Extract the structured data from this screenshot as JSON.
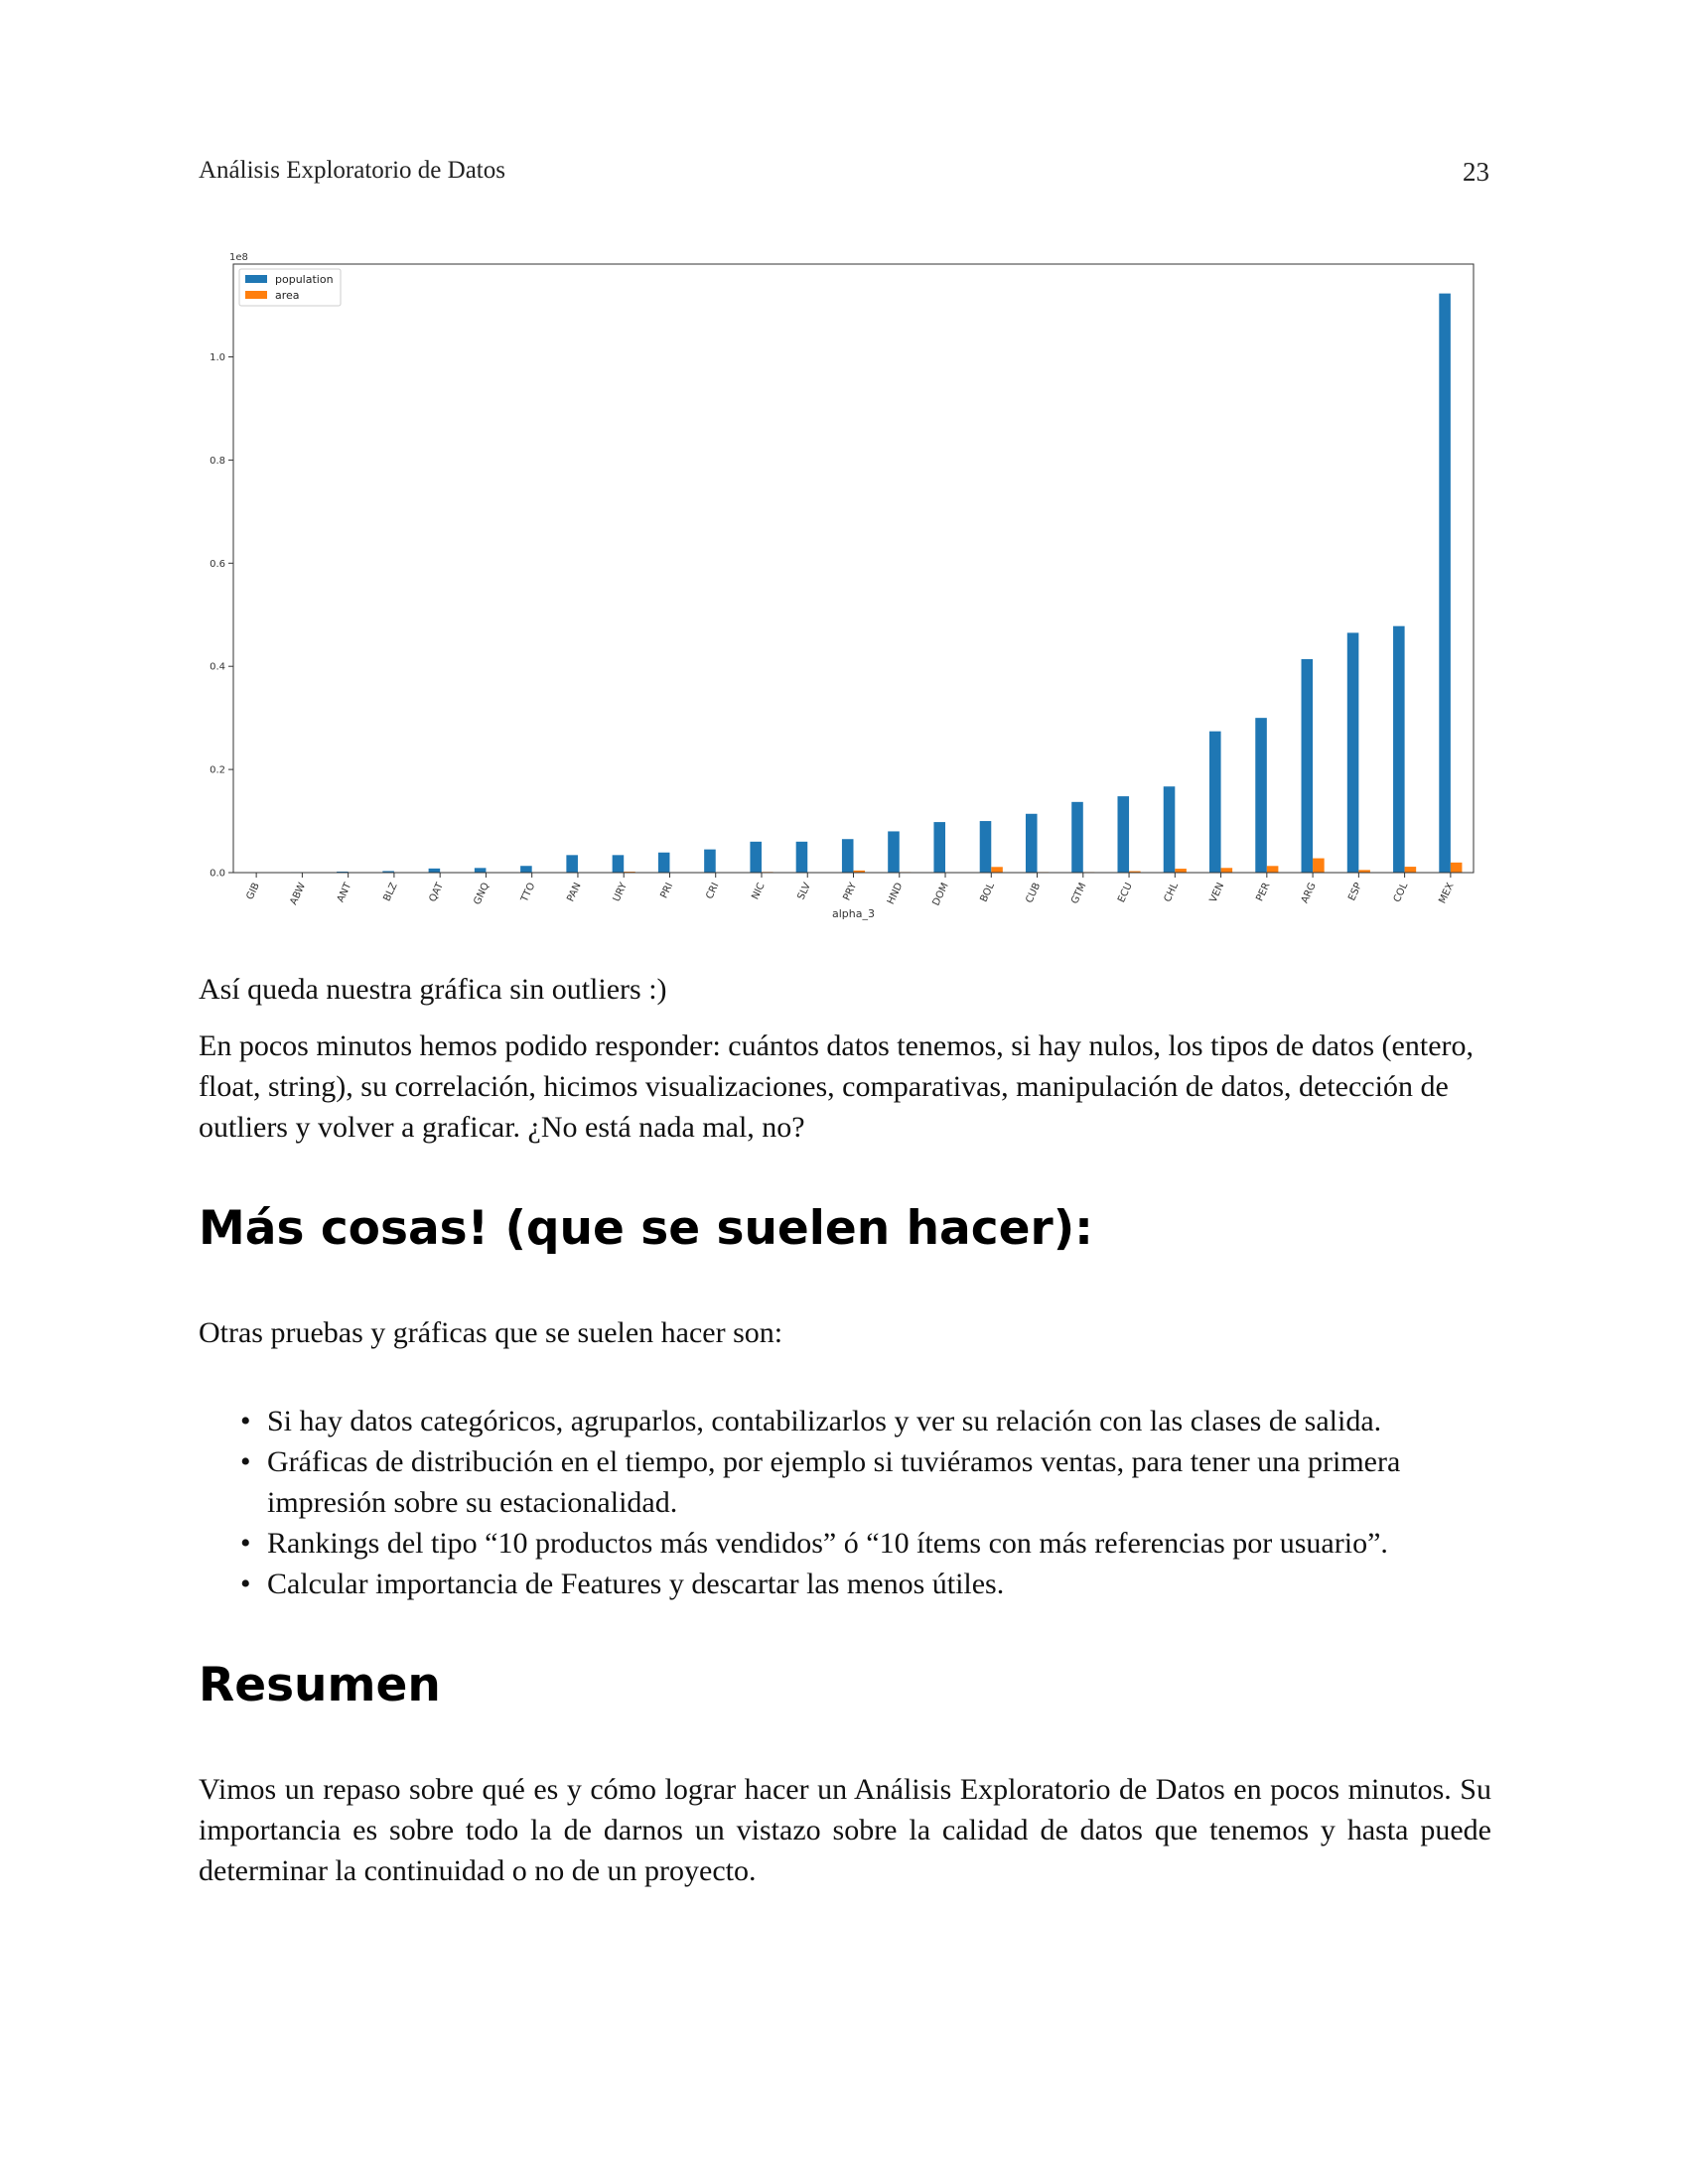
{
  "header": {
    "title": "Análisis Exploratorio de Datos",
    "page_number": "23"
  },
  "chart_data": {
    "type": "bar",
    "xlabel": "alpha_3",
    "ylabel": "",
    "scale_label": "1e8",
    "ylim": [
      0,
      1.18
    ],
    "yticks": [
      "0.0",
      "0.2",
      "0.4",
      "0.6",
      "0.8",
      "1.0"
    ],
    "legend_position": "top-left",
    "grid": false,
    "categories": [
      "GIB",
      "ABW",
      "ANT",
      "BLZ",
      "QAT",
      "GNQ",
      "TTO",
      "PAN",
      "URY",
      "PRI",
      "CRI",
      "NIC",
      "SLV",
      "PRY",
      "HND",
      "DOM",
      "BOL",
      "CUB",
      "GTM",
      "ECU",
      "CHL",
      "VEN",
      "PER",
      "ARG",
      "ESP",
      "COL",
      "MEX"
    ],
    "series": [
      {
        "name": "population",
        "color": "#1f77b4",
        "values": [
          0.0003,
          0.001,
          0.002,
          0.003,
          0.008,
          0.009,
          0.013,
          0.034,
          0.034,
          0.039,
          0.045,
          0.06,
          0.06,
          0.065,
          0.08,
          0.098,
          0.1,
          0.114,
          0.137,
          0.148,
          0.167,
          0.274,
          0.3,
          0.414,
          0.465,
          0.478,
          1.123
        ]
      },
      {
        "name": "area",
        "color": "#ff7f0e",
        "values": [
          0.0,
          0.0,
          0.0,
          0.0,
          0.0002,
          0.0003,
          0.0001,
          0.0008,
          0.0018,
          0.0001,
          0.0005,
          0.0013,
          0.0002,
          0.0041,
          0.0011,
          0.0005,
          0.011,
          0.0011,
          0.0011,
          0.0028,
          0.0076,
          0.0091,
          0.0129,
          0.0278,
          0.0051,
          0.0114,
          0.0196
        ]
      }
    ]
  },
  "content": {
    "caption": "Así queda nuestra gráfica sin outliers :)",
    "summary": "En pocos minutos hemos podido responder: cuántos datos tenemos, si hay nulos, los tipos de datos (entero, float, string), su correlación, hicimos visualizaciones, comparativas, manipulación de datos, detección de outliers y volver a graficar. ¿No está nada mal, no?",
    "heading_more": "Más cosas! (que se suelen hacer):",
    "intro_more": "Otras pruebas y gráficas que se suelen hacer son:",
    "bullets": [
      "Si hay datos categóricos, agruparlos, contabilizarlos y ver su relación con las clases de salida.",
      "Gráficas de distribución en el tiempo, por ejemplo si tuviéramos ventas, para tener una primera impresión sobre su estacionalidad.",
      "Rankings del tipo “10 productos más vendidos” ó “10 ítems con más referencias por usuario”.",
      "Calcular importancia de Features y descartar las menos útiles."
    ],
    "heading_summary": "Resumen",
    "summary_para": "Vimos un repaso sobre qué es y cómo lograr hacer un Análisis Exploratorio de Datos en pocos minutos. Su importancia es sobre todo la de darnos un vistazo sobre la calidad de datos que tenemos y hasta puede determinar la continuidad o no de un proyecto."
  }
}
